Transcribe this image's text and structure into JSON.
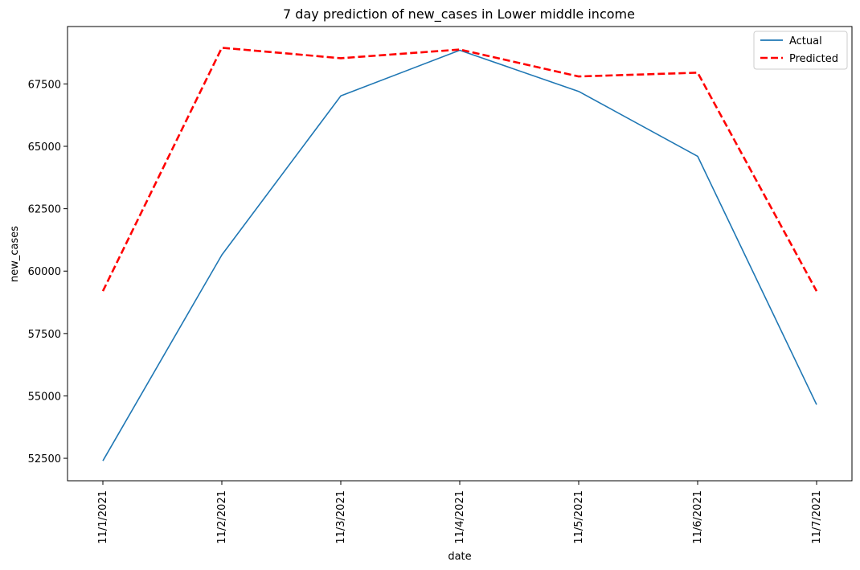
{
  "chart_data": {
    "type": "line",
    "title": "7 day prediction of new_cases in Lower middle income",
    "xlabel": "date",
    "ylabel": "new_cases",
    "categories": [
      "11/1/2021",
      "11/2/2021",
      "11/3/2021",
      "11/4/2021",
      "11/5/2021",
      "11/6/2021",
      "11/7/2021"
    ],
    "ylim": [
      51600,
      69800
    ],
    "yticks": [
      52500,
      55000,
      57500,
      60000,
      62500,
      65000,
      67500
    ],
    "ytick_labels": [
      "52500",
      "55000",
      "57500",
      "60000",
      "62500",
      "65000",
      "67500"
    ],
    "grid": false,
    "legend_position": "top-right",
    "series": [
      {
        "name": "Actual",
        "color": "#1f77b4",
        "style": "solid",
        "values": [
          52400,
          60650,
          67020,
          68850,
          67200,
          64600,
          54650
        ]
      },
      {
        "name": "Predicted",
        "color": "#ff0000",
        "style": "dashed",
        "values": [
          59200,
          68950,
          68530,
          68880,
          67800,
          67950,
          59200
        ]
      }
    ]
  }
}
